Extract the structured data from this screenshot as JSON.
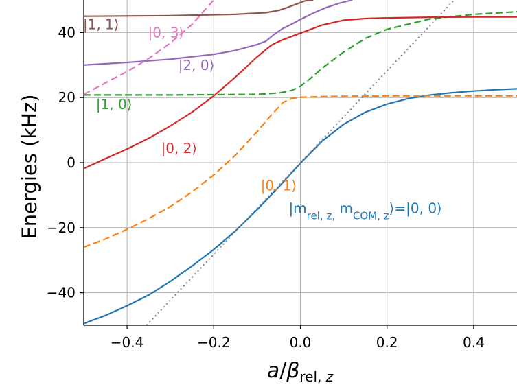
{
  "chart_data": {
    "type": "line",
    "xlabel": "a/β_rel,z",
    "ylabel": "Energies (kHz)",
    "xlim": [
      -0.5,
      0.5
    ],
    "ylim": [
      -50,
      50
    ],
    "xticks": [
      -0.4,
      -0.2,
      0.0,
      0.2,
      0.4
    ],
    "xtick_labels": [
      "−0.4",
      "−0.2",
      "0.0",
      "0.2",
      "0.4"
    ],
    "yticks": [
      -40,
      -20,
      0,
      20,
      40
    ],
    "ytick_labels": [
      "−40",
      "−20",
      "0",
      "20",
      "40"
    ],
    "grid": true,
    "legend": "none",
    "series": [
      {
        "name": "|m_rel,z, m_COM,z⟩=|0, 0⟩",
        "color": "#1f77b4",
        "dash": "solid",
        "x": [
          -0.5,
          -0.45,
          -0.4,
          -0.35,
          -0.3,
          -0.25,
          -0.2,
          -0.15,
          -0.1,
          -0.05,
          0.0,
          0.05,
          0.1,
          0.15,
          0.2,
          0.25,
          0.3,
          0.35,
          0.4,
          0.45,
          0.5
        ],
        "values": [
          -49.5,
          -47.0,
          -44.0,
          -40.7,
          -36.5,
          -31.8,
          -26.7,
          -21.0,
          -14.5,
          -7.5,
          -0.2,
          6.6,
          11.8,
          15.5,
          18.0,
          19.7,
          20.8,
          21.5,
          22.0,
          22.4,
          22.7
        ]
      },
      {
        "name": "|0, 1⟩",
        "color": "#ff7f0e",
        "dash": "dashed",
        "x": [
          -0.5,
          -0.45,
          -0.4,
          -0.35,
          -0.3,
          -0.25,
          -0.2,
          -0.15,
          -0.1,
          -0.07,
          -0.04,
          -0.02,
          0.0,
          0.05,
          0.1,
          0.2,
          0.3,
          0.4,
          0.5
        ],
        "values": [
          -26.0,
          -23.5,
          -20.5,
          -17.2,
          -13.5,
          -9.0,
          -3.8,
          2.3,
          9.5,
          14.2,
          18.5,
          19.7,
          20.1,
          20.3,
          20.4,
          20.5,
          20.5,
          20.5,
          20.5
        ]
      },
      {
        "name": "|1, 0⟩",
        "color": "#2ca02c",
        "dash": "dashed",
        "x": [
          -0.5,
          -0.3,
          -0.1,
          -0.05,
          -0.02,
          0.0,
          0.02,
          0.05,
          0.1,
          0.15,
          0.2,
          0.3,
          0.4,
          0.5
        ],
        "values": [
          20.8,
          20.8,
          21.0,
          21.4,
          22.2,
          23.5,
          25.5,
          29.0,
          34.0,
          38.2,
          41.0,
          44.2,
          45.6,
          46.4
        ]
      },
      {
        "name": "|0, 2⟩",
        "color": "#d62728",
        "dash": "solid",
        "x": [
          -0.5,
          -0.45,
          -0.4,
          -0.35,
          -0.3,
          -0.25,
          -0.2,
          -0.15,
          -0.1,
          -0.07,
          -0.06,
          -0.04,
          0.0,
          0.05,
          0.1,
          0.15,
          0.2,
          0.3,
          0.4,
          0.5
        ],
        "values": [
          -1.8,
          1.2,
          4.2,
          7.5,
          11.3,
          15.5,
          20.5,
          26.3,
          32.5,
          35.8,
          36.6,
          37.8,
          39.8,
          42.3,
          43.8,
          44.3,
          44.5,
          44.7,
          44.8,
          44.8
        ]
      },
      {
        "name": "|2, 0⟩",
        "color": "#9467bd",
        "dash": "solid",
        "x": [
          -0.5,
          -0.4,
          -0.3,
          -0.2,
          -0.15,
          -0.1,
          -0.08,
          -0.06,
          -0.04,
          -0.02,
          0.0,
          0.03,
          0.06,
          0.09,
          0.12
        ],
        "values": [
          30.0,
          30.8,
          31.8,
          33.3,
          34.5,
          36.3,
          37.3,
          39.5,
          41.3,
          42.6,
          44.0,
          46.0,
          47.7,
          49.0,
          50.0
        ]
      },
      {
        "name": "|0, 3⟩",
        "color": "#e377c2",
        "dash": "dashed",
        "x": [
          -0.5,
          -0.45,
          -0.4,
          -0.35,
          -0.3,
          -0.25,
          -0.2
        ],
        "values": [
          21.0,
          24.5,
          28.0,
          32.0,
          36.8,
          42.5,
          50.0
        ]
      },
      {
        "name": "|1, 1⟩",
        "color": "#8c564b",
        "dash": "solid",
        "x": [
          -0.5,
          -0.3,
          -0.15,
          -0.08,
          -0.05,
          -0.03,
          -0.01,
          0.0,
          0.01,
          0.03
        ],
        "values": [
          45.0,
          45.2,
          45.6,
          46.1,
          46.8,
          47.7,
          48.7,
          49.2,
          49.7,
          50.0
        ]
      },
      {
        "name": "",
        "color": "#808080",
        "dash": "dotted",
        "x": [
          -0.355,
          -0.2,
          0.0,
          0.2,
          0.355
        ],
        "values": [
          -50,
          -28.2,
          0,
          28.2,
          50
        ]
      }
    ],
    "labels": [
      {
        "text": "|1, 1⟩",
        "x": -0.46,
        "y": 41.0,
        "color": "#8c564b"
      },
      {
        "text": "|0, 3⟩",
        "x": -0.31,
        "y": 38.5,
        "color": "#e377c2"
      },
      {
        "text": "|2, 0⟩",
        "x": -0.24,
        "y": 28.5,
        "color": "#9467bd"
      },
      {
        "text": "|1, 0⟩",
        "x": -0.43,
        "y": 16.5,
        "color": "#2ca02c"
      },
      {
        "text": "|0, 2⟩",
        "x": -0.28,
        "y": 3.0,
        "color": "#d62728"
      },
      {
        "text": "|0, 1⟩",
        "x": -0.05,
        "y": -8.5,
        "color": "#ff7f0e"
      },
      {
        "text": "|m_rel,z, m_COM,z⟩=|0, 0⟩",
        "x": 0.15,
        "y": -15.5,
        "color": "#1f77b4"
      }
    ]
  }
}
